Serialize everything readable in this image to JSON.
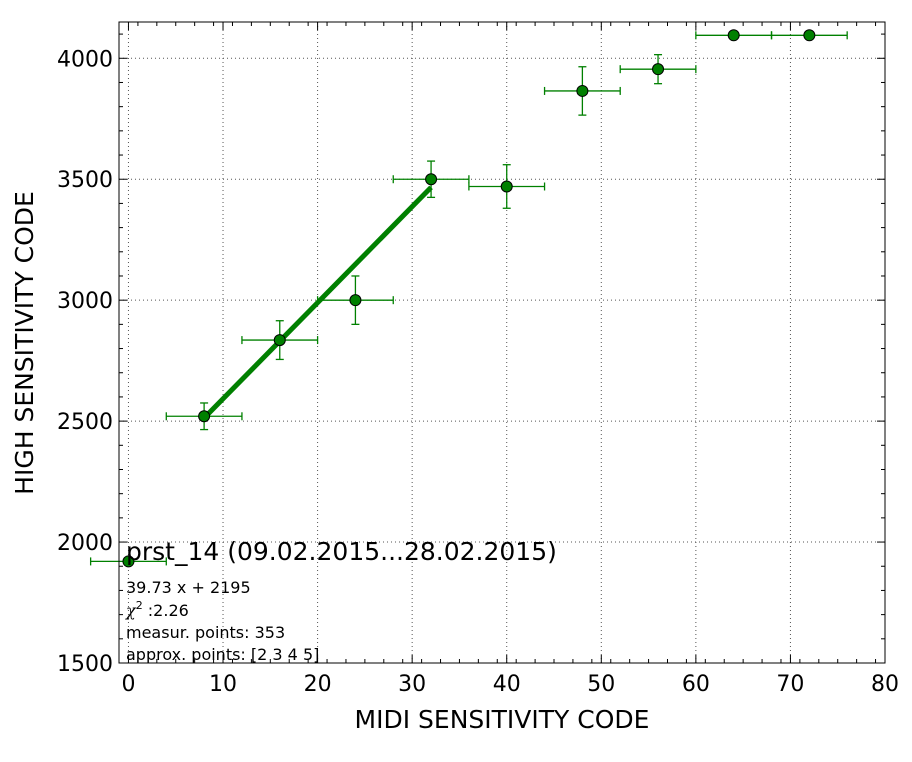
{
  "chart_data": {
    "type": "scatter",
    "xlabel": "MIDI SENSITIVITY CODE",
    "ylabel": "HIGH SENSITIVITY CODE",
    "xlim": [
      -1,
      80
    ],
    "ylim": [
      1500,
      4150
    ],
    "x_ticks": [
      0,
      10,
      20,
      30,
      40,
      50,
      60,
      70,
      80
    ],
    "y_ticks": [
      1500,
      2000,
      2500,
      3000,
      3500,
      4000
    ],
    "grid": true,
    "series": [
      {
        "points": [
          {
            "x": 0,
            "y": 1920,
            "xerr": 4,
            "yerr": 0
          },
          {
            "x": 8,
            "y": 2520,
            "xerr": 4,
            "yerr": 55
          },
          {
            "x": 16,
            "y": 2835,
            "xerr": 4,
            "yerr": 80
          },
          {
            "x": 24,
            "y": 3000,
            "xerr": 4,
            "yerr": 100
          },
          {
            "x": 32,
            "y": 3500,
            "xerr": 4,
            "yerr": 75
          },
          {
            "x": 40,
            "y": 3470,
            "xerr": 4,
            "yerr": 90
          },
          {
            "x": 48,
            "y": 3865,
            "xerr": 4,
            "yerr": 100
          },
          {
            "x": 56,
            "y": 3955,
            "xerr": 4,
            "yerr": 60
          },
          {
            "x": 64,
            "y": 4095,
            "xerr": 4,
            "yerr": 0
          },
          {
            "x": 72,
            "y": 4095,
            "xerr": 4,
            "yerr": 0
          }
        ]
      }
    ],
    "fit_line": {
      "x_start": 8,
      "x_end": 32,
      "slope": 39.73,
      "intercept": 2195
    },
    "annotation": {
      "title": "prst_14 (09.02.2015...28.02.2015)",
      "equation": "39.73 x + 2195",
      "chi2_symbol": "χ",
      "chi2_sup": "2",
      "chi2_value": " :2.26",
      "measur_points": "measur. points: 353",
      "approx_points": "approx. points: [2 3 4 5]"
    },
    "colors": {
      "marker": "#008000",
      "marker_edge": "#000000",
      "line": "#008000",
      "grid": "#555555"
    }
  }
}
